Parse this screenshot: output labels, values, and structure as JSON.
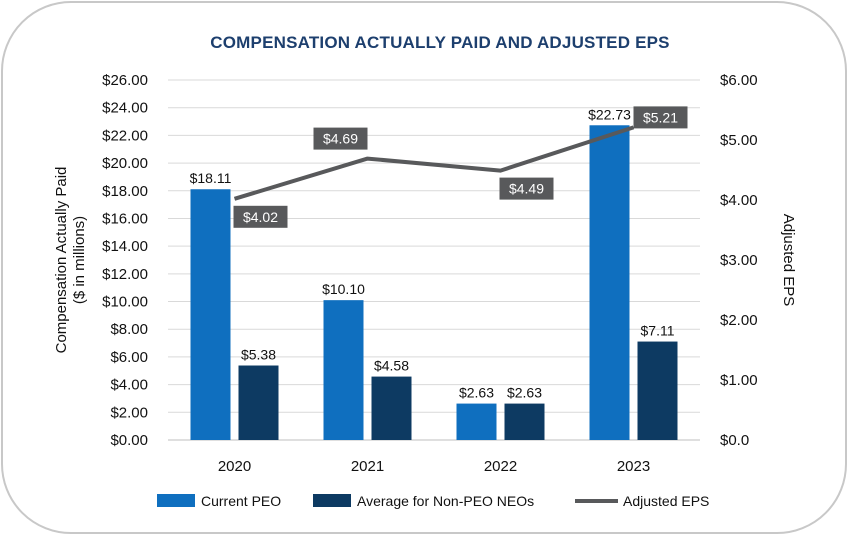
{
  "chart_data": {
    "type": "bar",
    "title": "COMPENSATION ACTUALLY PAID AND ADJUSTED EPS",
    "categories": [
      "2020",
      "2021",
      "2022",
      "2023"
    ],
    "series": [
      {
        "name": "Current PEO",
        "type": "bar",
        "axis": "left",
        "color": "#0f6fbf",
        "values": [
          18.11,
          10.1,
          2.63,
          22.73
        ],
        "labels": [
          "$18.11",
          "$10.10",
          "$2.63",
          "$22.73"
        ]
      },
      {
        "name": "Average for Non-PEO NEOs",
        "type": "bar",
        "axis": "left",
        "color": "#0d3a62",
        "values": [
          5.38,
          4.58,
          2.63,
          7.11
        ],
        "labels": [
          "$5.38",
          "$4.58",
          "$2.63",
          "$7.11"
        ]
      },
      {
        "name": "Adjusted EPS",
        "type": "line",
        "axis": "right",
        "color": "#58595b",
        "values": [
          4.02,
          4.69,
          4.49,
          5.21
        ],
        "labels": [
          "$4.02",
          "$4.69",
          "$4.49",
          "$5.21"
        ]
      }
    ],
    "ylabel": [
      "Compensation Actually Paid",
      "($ in millions)"
    ],
    "ylabel_right": "Adjusted EPS",
    "ylim": [
      0,
      26
    ],
    "ylim_right": [
      0,
      6
    ],
    "yticks": [
      "$0.00",
      "$2.00",
      "$4.00",
      "$6.00",
      "$8.00",
      "$10.00",
      "$12.00",
      "$14.00",
      "$16.00",
      "$18.00",
      "$20.00",
      "$22.00",
      "$24.00",
      "$26.00"
    ],
    "yticks_right": [
      "$0.0",
      "$1.00",
      "$2.00",
      "$3.00",
      "$4.00",
      "$5.00",
      "$6.00"
    ],
    "grid": true,
    "legend": "bottom"
  }
}
